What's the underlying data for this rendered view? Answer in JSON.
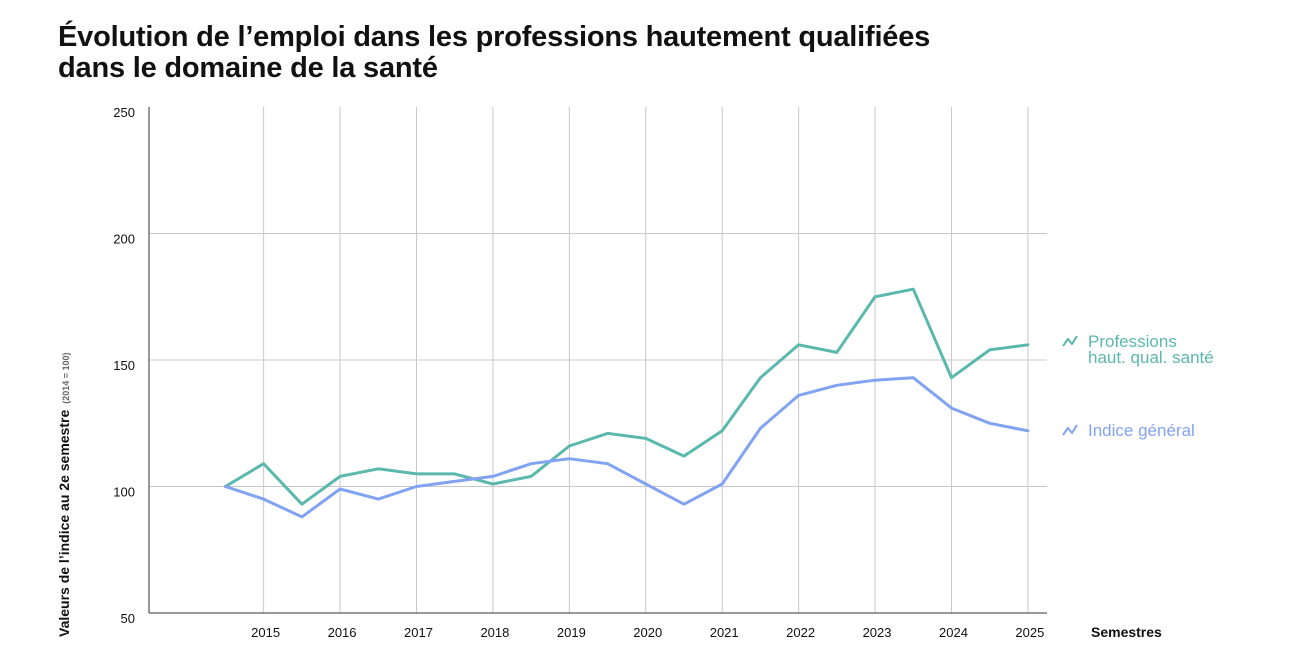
{
  "title_line1": "Évolution de l’emploi dans les professions hautement qualifiées",
  "title_line2": "dans le domaine de la santé",
  "chart_data": {
    "type": "line",
    "ylabel": "Valeurs de l’indice au 2e semestre",
    "ylabel_note": "(2014 = 100)",
    "xlabel": "Semestres",
    "ylim": [
      50,
      250
    ],
    "y_ticks": [
      50,
      100,
      150,
      200,
      250
    ],
    "x_ticks": [
      "2015",
      "2016",
      "2017",
      "2018",
      "2019",
      "2020",
      "2021",
      "2022",
      "2023",
      "2024",
      "2025"
    ],
    "x_range": [
      2013.5,
      2025.25
    ],
    "grid": true,
    "legend_placement": "right",
    "series": [
      {
        "name_lines": [
          "Professions",
          "haut. qual. santé"
        ],
        "color": "#5bb8ad",
        "x": [
          2014.5,
          2015,
          2015.5,
          2016,
          2016.5,
          2017,
          2017.5,
          2018,
          2018.5,
          2019,
          2019.5,
          2020,
          2020.5,
          2021,
          2021.5,
          2022,
          2022.5,
          2023,
          2023.5,
          2024,
          2024.5,
          2025
        ],
        "values": [
          100,
          109,
          93,
          104,
          107,
          105,
          105,
          101,
          104,
          116,
          121,
          119,
          112,
          122,
          143,
          156,
          153,
          175,
          178,
          143,
          154,
          156
        ]
      },
      {
        "name_lines": [
          "Indice général"
        ],
        "color": "#81a3f2",
        "x": [
          2014.5,
          2015,
          2015.5,
          2016,
          2016.5,
          2017,
          2017.5,
          2018,
          2018.5,
          2019,
          2019.5,
          2020,
          2020.5,
          2021,
          2021.5,
          2022,
          2022.5,
          2023,
          2023.5,
          2024,
          2024.5,
          2025
        ],
        "values": [
          100,
          95,
          88,
          99,
          95,
          100,
          102,
          104,
          109,
          111,
          109,
          101,
          93,
          101,
          123,
          136,
          140,
          142,
          143,
          131,
          125,
          122
        ]
      }
    ]
  }
}
